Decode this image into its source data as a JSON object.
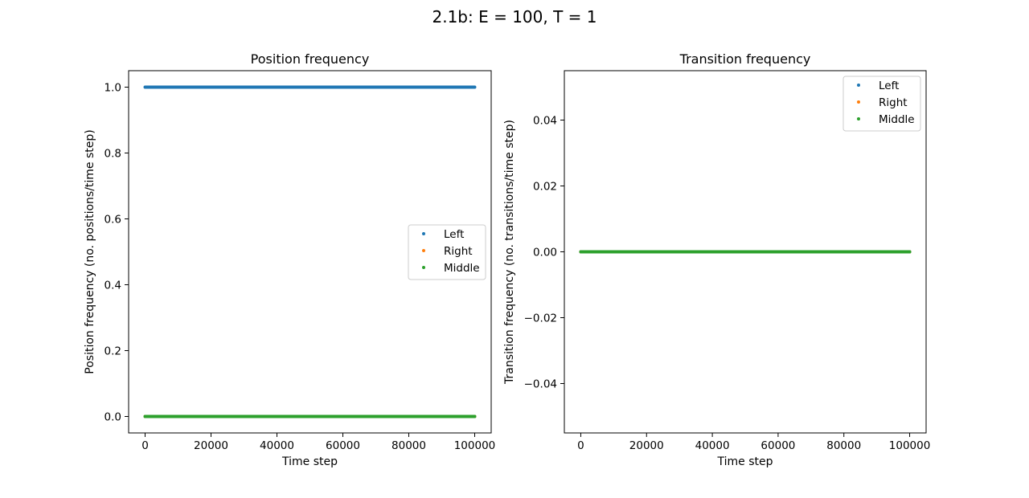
{
  "figure": {
    "suptitle": "2.1b: E = 100, T = 1"
  },
  "colors": {
    "Left": "#1f77b4",
    "Right": "#ff7f0e",
    "Middle": "#2ca02c"
  },
  "chart_data": [
    {
      "type": "scatter",
      "title": "Position frequency",
      "xlabel": "Time step",
      "ylabel": "Position frequency (no. positions/time step)",
      "xlim": [
        -5000,
        105000
      ],
      "ylim": [
        -0.05,
        1.05
      ],
      "xticks": [
        0,
        20000,
        40000,
        60000,
        80000,
        100000
      ],
      "xtick_labels": [
        "0",
        "20000",
        "40000",
        "60000",
        "80000",
        "100000"
      ],
      "yticks": [
        0.0,
        0.2,
        0.4,
        0.6,
        0.8,
        1.0
      ],
      "ytick_labels": [
        "0.0",
        "0.2",
        "0.4",
        "0.6",
        "0.8",
        "1.0"
      ],
      "legend_position": "center-right",
      "grid": false,
      "series": [
        {
          "name": "Left",
          "x_range": [
            0,
            100000
          ],
          "y": 1.0
        },
        {
          "name": "Right",
          "x_range": [
            0,
            100000
          ],
          "y": 0.0
        },
        {
          "name": "Middle",
          "x_range": [
            0,
            100000
          ],
          "y": 0.0
        }
      ]
    },
    {
      "type": "scatter",
      "title": "Transition frequency",
      "xlabel": "Time step",
      "ylabel": "Transition frequency (no. transitions/time step)",
      "xlim": [
        -5000,
        105000
      ],
      "ylim": [
        -0.055,
        0.055
      ],
      "xticks": [
        0,
        20000,
        40000,
        60000,
        80000,
        100000
      ],
      "xtick_labels": [
        "0",
        "20000",
        "40000",
        "60000",
        "80000",
        "100000"
      ],
      "yticks": [
        -0.04,
        -0.02,
        0.0,
        0.02,
        0.04
      ],
      "ytick_labels": [
        "−0.04",
        "−0.02",
        "0.00",
        "0.02",
        "0.04"
      ],
      "legend_position": "top-right",
      "grid": false,
      "series": [
        {
          "name": "Left",
          "x_range": [
            0,
            100000
          ],
          "y": 0.0
        },
        {
          "name": "Right",
          "x_range": [
            0,
            100000
          ],
          "y": 0.0
        },
        {
          "name": "Middle",
          "x_range": [
            0,
            100000
          ],
          "y": 0.0
        }
      ]
    }
  ]
}
